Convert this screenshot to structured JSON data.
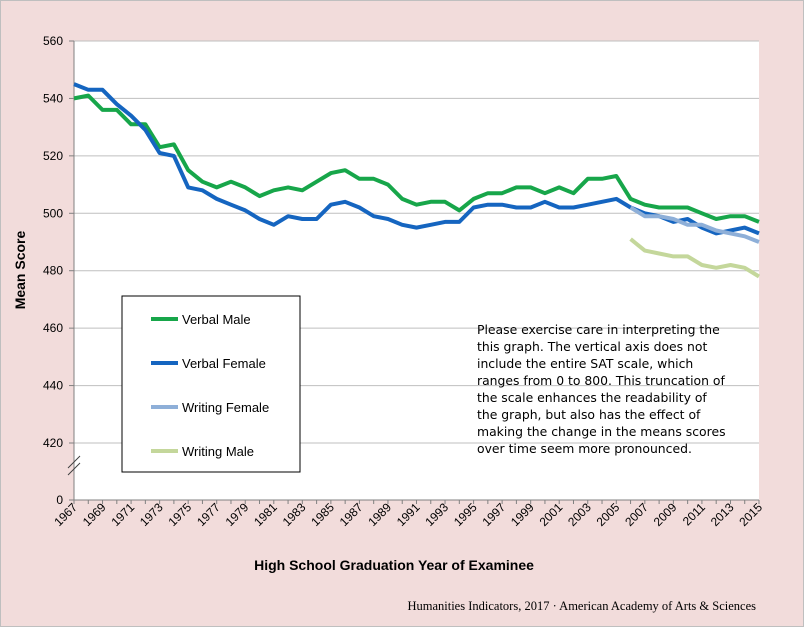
{
  "chart_data": {
    "type": "line",
    "xlabel": "High School Graduation Year of Examinee",
    "ylabel": "Mean Score",
    "x": [
      1967,
      1968,
      1969,
      1970,
      1971,
      1972,
      1973,
      1974,
      1975,
      1976,
      1977,
      1978,
      1979,
      1980,
      1981,
      1982,
      1983,
      1984,
      1985,
      1986,
      1987,
      1988,
      1989,
      1990,
      1991,
      1992,
      1993,
      1994,
      1995,
      1996,
      1997,
      1998,
      1999,
      2000,
      2001,
      2002,
      2003,
      2004,
      2005,
      2006,
      2007,
      2008,
      2009,
      2010,
      2011,
      2012,
      2013,
      2014,
      2015
    ],
    "xlim": [
      1967,
      2015
    ],
    "ylim": [
      400,
      560
    ],
    "yticks": [
      0,
      420,
      440,
      460,
      480,
      500,
      520,
      540,
      560
    ],
    "xtick_labels": [
      "1967",
      "1969",
      "1971",
      "1973",
      "1975",
      "1977",
      "1979",
      "1981",
      "1983",
      "1985",
      "1987",
      "1989",
      "1991",
      "1993",
      "1995",
      "1997",
      "1999",
      "2001",
      "2003",
      "2005",
      "2007",
      "2009",
      "2011",
      "2013",
      "2015"
    ],
    "axis_break": true,
    "grid": true,
    "series": [
      {
        "name": "Verbal Male",
        "color": "#17a64a",
        "values": [
          540,
          541,
          536,
          536,
          531,
          531,
          523,
          524,
          515,
          511,
          509,
          511,
          509,
          506,
          508,
          509,
          508,
          511,
          514,
          515,
          512,
          512,
          510,
          505,
          503,
          504,
          504,
          501,
          505,
          507,
          507,
          509,
          509,
          507,
          509,
          507,
          512,
          512,
          513,
          505,
          503,
          502,
          502,
          502,
          500,
          498,
          499,
          499,
          497
        ]
      },
      {
        "name": "Verbal Female",
        "color": "#1565c0",
        "values": [
          545,
          543,
          543,
          538,
          534,
          529,
          521,
          520,
          509,
          508,
          505,
          503,
          501,
          498,
          496,
          499,
          498,
          498,
          503,
          504,
          502,
          499,
          498,
          496,
          495,
          496,
          497,
          497,
          502,
          503,
          503,
          502,
          502,
          504,
          502,
          502,
          503,
          504,
          505,
          502,
          500,
          499,
          497,
          498,
          495,
          493,
          494,
          495,
          493
        ]
      },
      {
        "name": "Writing Female",
        "color": "#8eafd8",
        "values": [
          null,
          null,
          null,
          null,
          null,
          null,
          null,
          null,
          null,
          null,
          null,
          null,
          null,
          null,
          null,
          null,
          null,
          null,
          null,
          null,
          null,
          null,
          null,
          null,
          null,
          null,
          null,
          null,
          null,
          null,
          null,
          null,
          null,
          null,
          null,
          null,
          null,
          null,
          null,
          502,
          499,
          499,
          498,
          496,
          496,
          494,
          493,
          492,
          490
        ]
      },
      {
        "name": "Writing Male",
        "color": "#c4d79b",
        "values": [
          null,
          null,
          null,
          null,
          null,
          null,
          null,
          null,
          null,
          null,
          null,
          null,
          null,
          null,
          null,
          null,
          null,
          null,
          null,
          null,
          null,
          null,
          null,
          null,
          null,
          null,
          null,
          null,
          null,
          null,
          null,
          null,
          null,
          null,
          null,
          null,
          null,
          null,
          null,
          491,
          487,
          486,
          485,
          485,
          482,
          481,
          482,
          481,
          478
        ]
      }
    ],
    "legend_position": "lower-left",
    "note": [
      "Please exercise care in interpreting the",
      "this graph. The vertical axis does not",
      "include the entire SAT scale, which",
      "ranges from 0 to 800. This truncation of",
      "the scale enhances the readability of",
      "the graph, but also has the effect of",
      "making the change in the means scores",
      "over time seem more pronounced."
    ],
    "source": "Humanities Indicators, 2017 · American Academy of Arts & Sciences"
  }
}
